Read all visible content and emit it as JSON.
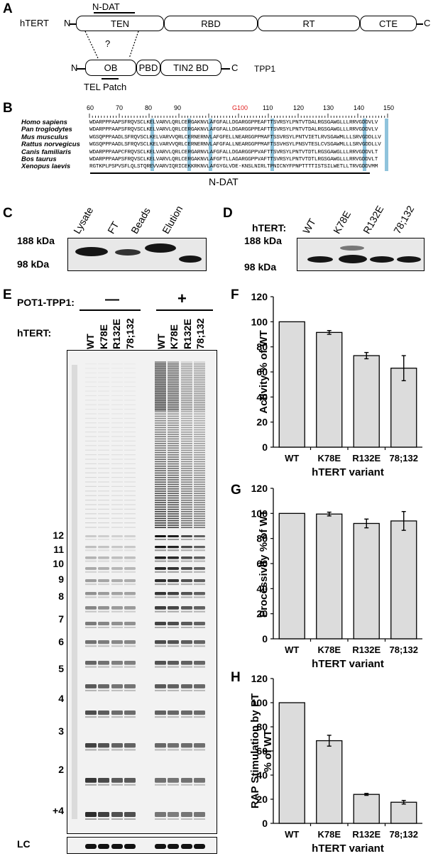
{
  "panels": {
    "A": "A",
    "B": "B",
    "C": "C",
    "D": "D",
    "E": "E",
    "F": "F",
    "G": "G",
    "H": "H"
  },
  "panelA": {
    "hTERT_label": "hTERT",
    "n_term": "N",
    "c_term": "C",
    "domains": [
      "TEN",
      "RBD",
      "RT",
      "CTE"
    ],
    "ndat_label": "N-DAT",
    "question": "?",
    "tpp1_domains": [
      "OB",
      "PBD",
      "TIN2 BD"
    ],
    "tpp1_label": "TPP1",
    "tel_patch": "TEL Patch"
  },
  "panelB": {
    "ruler": [
      "60",
      "70",
      "80",
      "90",
      "G100",
      "110",
      "120",
      "130",
      "140",
      "150"
    ],
    "species": [
      "Homo sapiens",
      "Pan troglodytes",
      "Mus musculus",
      "Rattus norvegicus",
      "Canis familiaris",
      "Bos taurus",
      "Xenopus laevis"
    ],
    "sequences": [
      "WDARPPPAAPSFRQVSCLKELVARVLQRLCERGAKNVLAFGFALLDGARGGPPEAFTTSVRSYLPNTVTDALRGSGAWGLLLRRVGDDVLV",
      "WDARPPPAAPSFRQVSCLKELVARVLQRLCERGAKNVLAFGFALLDGARGGPPEAFTTSVRSYLPNTVTDALRGSGAWGLLLRRVGDDVLV",
      "WGSQPPPAADLSFRQVSCLKELVARVVQRLCERNERNVLAFGFELLNEARGGPPMAFTSSVRSYLPNTVIETLRVSGAWMLLLSRVGDDLLV",
      "WGSQPPPAADLSFRQVSCLKELVARVVQRLCERNERNVLAFGFALLNEARGGPPMAFTSSVHSYLPNSVTESLCVSGAWMLLLSRVGDDLLV",
      "WDARPPPAAPCFRQVSCLKELVARVLQRLCERGARNVLAFGFALLDGARGGPPVAFTTSVRSYLPNTVTDTLRGSGAWGLLLRRVGDDVLT",
      "WDARPPPAAPSFRQVSCLKELVARVLQRLCERGAKNVLAFGFTLLAGARGGPPVAFTTSVRSYLPNTVTDTLRGSGAWGLLLRRVGDDVLT",
      "RGTKPLPSPVSFLQLSTQREVVARVIQRICEKKRKNVLAFGYGLVDE-KNSLNIRLTPNICNYFPNPTTTTISTSILWETLLTRVGDDVMM"
    ],
    "ndat_label": "N-DAT"
  },
  "panelC": {
    "lanes": [
      "Lysate",
      "FT",
      "Beads",
      "Elution"
    ],
    "mw": [
      "188 kDa",
      "98 kDa"
    ]
  },
  "panelD": {
    "row_label": "hTERT:",
    "lanes": [
      "WT",
      "K78E",
      "R132E",
      "78;132"
    ],
    "mw": [
      "188 kDa",
      "98 kDa"
    ]
  },
  "panelE": {
    "pot_label": "POT1-TPP1:",
    "minus": "—",
    "plus": "+",
    "hTERT_label": "hTERT:",
    "lanes": [
      "WT",
      "K78E",
      "R132E",
      "78;132",
      "WT",
      "K78E",
      "R132E",
      "78;132"
    ],
    "repeat_labels": [
      "12",
      "11",
      "10",
      "9",
      "8",
      "7",
      "6",
      "5",
      "4",
      "3",
      "2",
      "+4"
    ],
    "lc_label": "LC"
  },
  "chart_data": [
    {
      "type": "bar",
      "panel": "F",
      "categories": [
        "WT",
        "K78E",
        "R132E",
        "78;132"
      ],
      "values": [
        100,
        91.5,
        73,
        63
      ],
      "errors": [
        0,
        1.5,
        2.5,
        10
      ],
      "ylabel": "Activity % of WT",
      "xlabel": "hTERT variant",
      "ylim": [
        0,
        120
      ],
      "yticks": [
        "0",
        "20",
        "40",
        "60",
        "80",
        "100",
        "120"
      ]
    },
    {
      "type": "bar",
      "panel": "G",
      "categories": [
        "WT",
        "K78E",
        "R132E",
        "78;132"
      ],
      "values": [
        100,
        99.5,
        92,
        94
      ],
      "errors": [
        0,
        1.5,
        3.5,
        7.5
      ],
      "ylabel": "Processivity % of WT",
      "xlabel": "hTERT variant",
      "ylim": [
        0,
        120
      ],
      "yticks": [
        "0",
        "20",
        "40",
        "60",
        "80",
        "100",
        "120"
      ]
    },
    {
      "type": "bar",
      "panel": "H",
      "categories": [
        "WT",
        "K78E",
        "R132E",
        "78;132"
      ],
      "values": [
        100,
        68.5,
        24,
        17.5
      ],
      "errors": [
        0,
        4.5,
        0.8,
        1.5
      ],
      "ylabel": "RAP Stimulation by PT % of WT",
      "ylabel_lines": [
        "RAP Stimulation by PT",
        "% of WT"
      ],
      "xlabel": "hTERT variant",
      "ylim": [
        0,
        120
      ],
      "yticks": [
        "0",
        "20",
        "40",
        "60",
        "80",
        "100",
        "120"
      ]
    }
  ],
  "colors": {
    "bar_fill": "#dcdcdc",
    "highlight": "#8fc3dc",
    "g100": "#e02020",
    "gel_bg": "#e8e8e8"
  }
}
